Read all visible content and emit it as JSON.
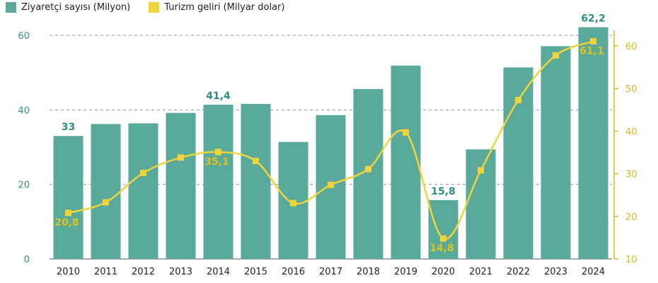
{
  "chart_data": {
    "type": "bar",
    "categories": [
      "2010",
      "2011",
      "2012",
      "2013",
      "2014",
      "2015",
      "2016",
      "2017",
      "2018",
      "2019",
      "2020",
      "2021",
      "2022",
      "2023",
      "2024"
    ],
    "series": [
      {
        "name": "Ziyaretçi sayısı (Milyon)",
        "type": "bar",
        "axis": "left",
        "color": "#5aaa9b",
        "values": [
          33,
          36.2,
          36.4,
          39.2,
          41.4,
          41.6,
          31.4,
          38.6,
          45.6,
          51.9,
          15.8,
          29.4,
          51.4,
          57.1,
          62.2
        ]
      },
      {
        "name": "Turizm geliri (Milyar dolar)",
        "type": "line",
        "axis": "right",
        "color": "#f0d43a",
        "values": [
          20.8,
          23.3,
          30.2,
          33.8,
          35.1,
          33.0,
          23.1,
          27.4,
          31.1,
          39.7,
          14.8,
          30.8,
          47.3,
          57.8,
          61.1
        ]
      }
    ],
    "bar_labels": [
      {
        "index": 0,
        "text": "33"
      },
      {
        "index": 4,
        "text": "41,4"
      },
      {
        "index": 10,
        "text": "15,8"
      },
      {
        "index": 14,
        "text": "62,2"
      }
    ],
    "line_labels": [
      {
        "index": 0,
        "text": "20,8"
      },
      {
        "index": 4,
        "text": "35,1"
      },
      {
        "index": 10,
        "text": "14,8"
      },
      {
        "index": 14,
        "text": "61,1"
      }
    ],
    "y_left": {
      "min": 0,
      "max": 60,
      "ticks": [
        "0",
        "20",
        "40",
        "60"
      ],
      "color": "#2f8f80"
    },
    "y_right": {
      "min": 10,
      "max": 60,
      "ticks": [
        "10",
        "20",
        "30",
        "40",
        "50",
        "60"
      ],
      "color": "#d9b81f"
    },
    "grid": true,
    "legend_position": "top-left",
    "title": "",
    "xlabel": "",
    "ylabel": ""
  }
}
